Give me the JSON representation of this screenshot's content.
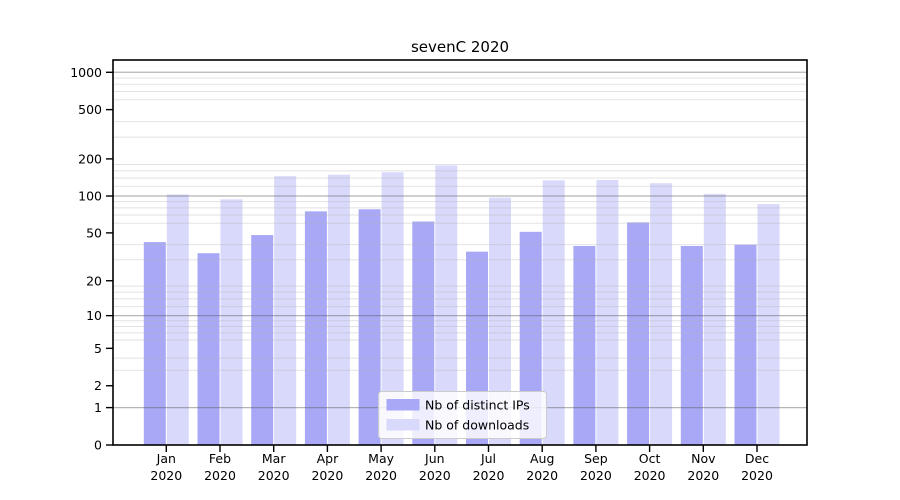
{
  "chart_data": {
    "type": "bar",
    "title": "sevenC 2020",
    "categories": [
      "Jan",
      "Feb",
      "Mar",
      "Apr",
      "May",
      "Jun",
      "Jul",
      "Aug",
      "Sep",
      "Oct",
      "Nov",
      "Dec"
    ],
    "year_label": "2020",
    "series": [
      {
        "name": "Nb of distinct IPs",
        "color": "#a8a8f7",
        "values": [
          42,
          34,
          48,
          75,
          78,
          62,
          35,
          51,
          39,
          61,
          39,
          40
        ]
      },
      {
        "name": "Nb of downloads",
        "color": "#d9d9fb",
        "values": [
          103,
          94,
          145,
          149,
          156,
          177,
          97,
          134,
          135,
          127,
          104,
          86
        ]
      }
    ],
    "yscale": "symlog",
    "yticks": [
      0,
      1,
      2,
      5,
      10,
      20,
      50,
      100,
      200,
      500,
      1000
    ],
    "major_gridlines": [
      1,
      10,
      100,
      1000
    ],
    "minor_gridlines": [
      3,
      4,
      6,
      7,
      8,
      9,
      12,
      14,
      16,
      18,
      30,
      40,
      60,
      70,
      80,
      90,
      120,
      140,
      160,
      180,
      300,
      400,
      600,
      700,
      800,
      900
    ],
    "ylim": [
      0,
      1256
    ],
    "xlabel": "",
    "ylabel": "",
    "grid": true,
    "legend_position": "lower center",
    "colors": {
      "axis": "#000000",
      "major_grid": "#b3b3b3",
      "minor_grid": "#ebebeb",
      "legend_border": "#cccccc",
      "legend_bg": "rgba(255,255,255,0.8)"
    }
  }
}
